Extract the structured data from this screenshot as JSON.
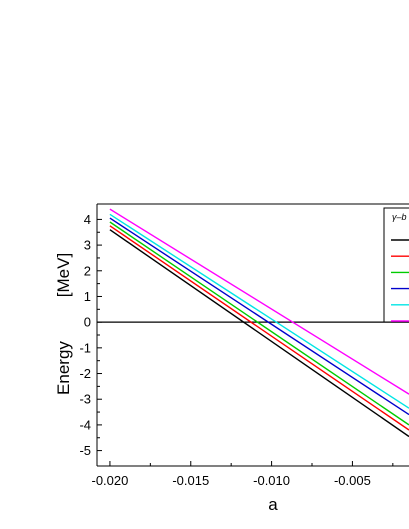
{
  "chart_data": {
    "type": "line",
    "xlabel": "a",
    "ylabel_main": "Energy",
    "ylabel_unit": "[MeV]",
    "xlim": [
      -0.0208,
      -0.0015
    ],
    "ylim": [
      -5.6,
      4.6
    ],
    "xticks": [
      -0.02,
      -0.015,
      -0.01,
      -0.005
    ],
    "xtick_labels": [
      "-0.020",
      "-0.015",
      "-0.010",
      "-0.005"
    ],
    "yticks": [
      4,
      3,
      2,
      1,
      0,
      -1,
      -2,
      -3,
      -4,
      -5
    ],
    "ytick_labels": [
      "4",
      "3",
      "2",
      "1",
      "0",
      "-1",
      "-2",
      "-3",
      "-4",
      "-5"
    ],
    "grid": false,
    "legend_title": "γ–b",
    "legend_position": "right",
    "zero_line": {
      "y": 0,
      "color": "#000000"
    },
    "series": [
      {
        "color": "#000000",
        "x": [
          -0.02,
          -0.0015
        ],
        "y": [
          3.6,
          -4.45
        ]
      },
      {
        "color": "#ff0000",
        "x": [
          -0.02,
          -0.0015
        ],
        "y": [
          3.75,
          -4.2
        ]
      },
      {
        "color": "#00cc00",
        "x": [
          -0.02,
          -0.0015
        ],
        "y": [
          3.9,
          -4.0
        ]
      },
      {
        "color": "#0000cc",
        "x": [
          -0.02,
          -0.0015
        ],
        "y": [
          4.05,
          -3.6
        ]
      },
      {
        "color": "#00e5e5",
        "x": [
          -0.02,
          -0.0015
        ],
        "y": [
          4.2,
          -3.35
        ]
      },
      {
        "color": "#ff00ff",
        "x": [
          -0.02,
          -0.0015
        ],
        "y": [
          4.4,
          -2.8
        ]
      }
    ]
  }
}
